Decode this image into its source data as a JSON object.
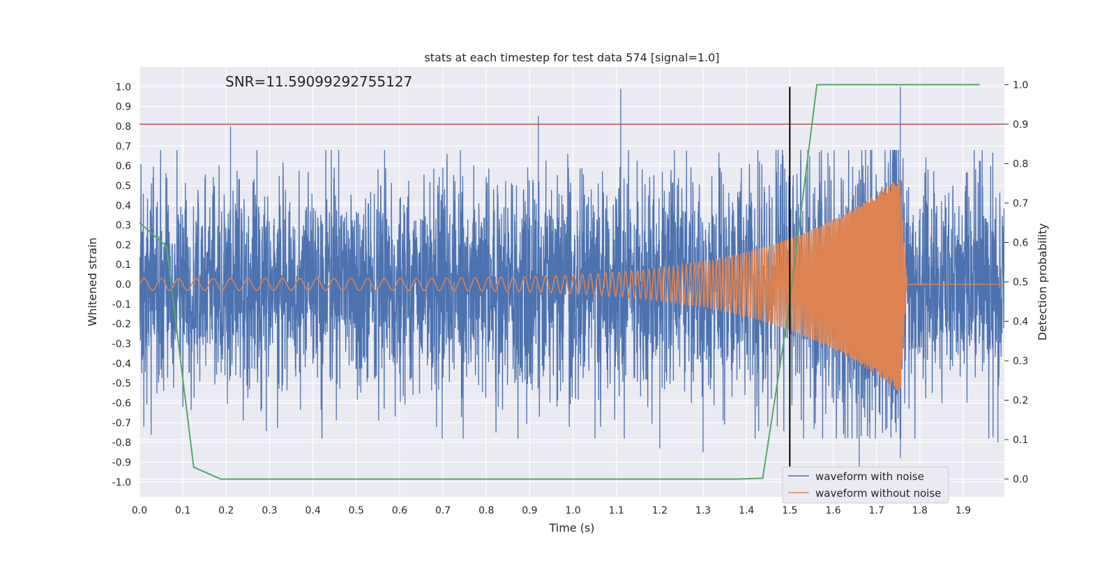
{
  "chart_data": {
    "type": "line",
    "title": "stats at each timestep for test data 574 [signal=1.0]",
    "xlabel": "Time (s)",
    "ylabel": "Whitened strain",
    "y2label": "Detection probability",
    "annotation": "SNR=11.59099292755127",
    "xlim": [
      0.0,
      1.995
    ],
    "ylim": [
      -1.075,
      1.1
    ],
    "y2lim": [
      -0.045,
      1.045
    ],
    "x_ticks": [
      "0.0",
      "0.1",
      "0.2",
      "0.3",
      "0.4",
      "0.5",
      "0.6",
      "0.7",
      "0.8",
      "0.9",
      "1.0",
      "1.1",
      "1.2",
      "1.3",
      "1.4",
      "1.5",
      "1.6",
      "1.7",
      "1.8",
      "1.9"
    ],
    "y_ticks": [
      "-1.0",
      "-0.9",
      "-0.8",
      "-0.7",
      "-0.6",
      "-0.5",
      "-0.4",
      "-0.3",
      "-0.2",
      "-0.1",
      "0.0",
      "0.1",
      "0.2",
      "0.3",
      "0.4",
      "0.5",
      "0.6",
      "0.7",
      "0.8",
      "0.9",
      "1.0"
    ],
    "y2_ticks": [
      "0.0",
      "0.1",
      "0.2",
      "0.3",
      "0.4",
      "0.5",
      "0.6",
      "0.7",
      "0.8",
      "0.9",
      "1.0"
    ],
    "grid": true,
    "legend_position": "lower-right",
    "threshold_line": {
      "y2": 0.9,
      "color": "#c44e52"
    },
    "merger_line": {
      "x": 1.5,
      "y_from": -1.0,
      "y_to": 1.0,
      "color": "#000000"
    },
    "series": [
      {
        "name": "waveform with noise",
        "color": "#4c72b0",
        "axis": "left",
        "kind": "noise",
        "sample_rate": 2048,
        "std": 0.27,
        "spikes": [
          [
            0.01,
            -0.72
          ],
          [
            0.21,
            0.8
          ],
          [
            0.92,
            0.85
          ],
          [
            1.11,
            0.99
          ],
          [
            1.2,
            -0.83
          ],
          [
            1.3,
            -0.85
          ],
          [
            1.66,
            -0.95
          ],
          [
            1.755,
            1.0
          ],
          [
            1.755,
            -0.88
          ],
          [
            1.98,
            -0.8
          ]
        ]
      },
      {
        "name": "waveform without noise",
        "color": "#dd8452",
        "axis": "left",
        "kind": "chirp",
        "t_merge": 1.755,
        "f0": 25,
        "f1": 140,
        "a0": 0.03,
        "a1": 0.55
      },
      {
        "name": "",
        "color": "#55a868",
        "axis": "right",
        "x": [
          0.0,
          0.0625,
          0.125,
          0.1875,
          0.25,
          1.375,
          1.4375,
          1.5,
          1.5625,
          1.9375
        ],
        "y": [
          0.65,
          0.59,
          0.03,
          0.0,
          0.0,
          0.0,
          0.002,
          0.45,
          1.0,
          1.0
        ]
      }
    ]
  }
}
